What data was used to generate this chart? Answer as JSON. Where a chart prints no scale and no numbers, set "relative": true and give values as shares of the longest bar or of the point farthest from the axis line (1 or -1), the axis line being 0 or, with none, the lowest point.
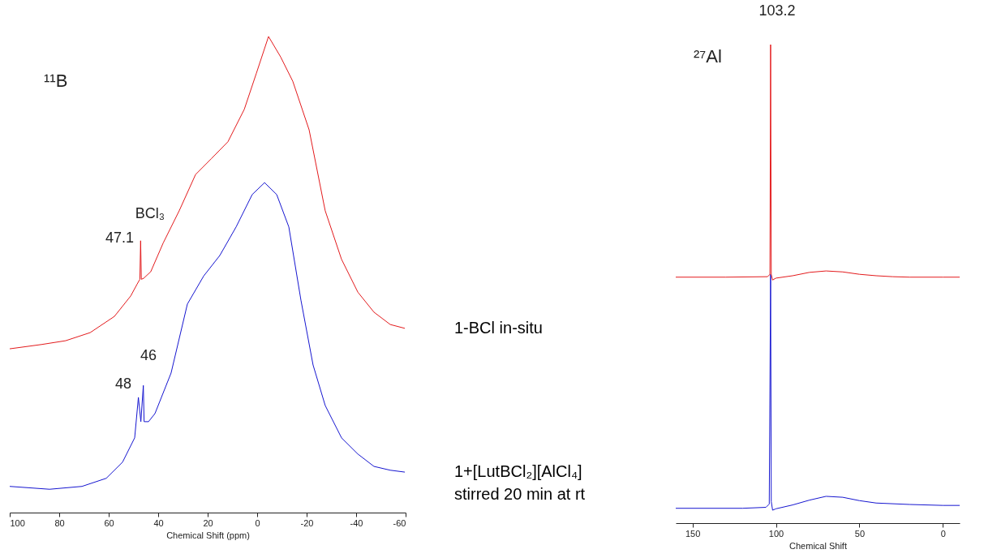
{
  "chart_data": [
    {
      "type": "line",
      "relative": true,
      "xlabel": "Chemical Shift (ppm)",
      "xlim": [
        100,
        -60
      ],
      "xticks": [
        100,
        80,
        60,
        40,
        20,
        0,
        -20,
        -40,
        -60
      ],
      "legend": false,
      "marker": "none",
      "line_style": "solid",
      "annotations": [
        "¹¹B",
        "BCl₃",
        "47.1",
        "46",
        "48"
      ],
      "series": [
        {
          "name": "1-BCl in-situ",
          "color": "#e31a1c",
          "x": [
            100,
            87.2,
            77.4,
            67.5,
            57.7,
            51.1,
            48.5,
            47.4,
            47.1,
            46.8,
            45.9,
            43.0,
            38.0,
            31.5,
            24.9,
            18.4,
            11.8,
            5.2,
            0.3,
            -4.6,
            -9.5,
            -14.4,
            -21.0,
            -27.5,
            -34.1,
            -40.7,
            -47.2,
            -53.8,
            -59.7
          ],
          "values": [
            0.344,
            0.353,
            0.361,
            0.378,
            0.412,
            0.455,
            0.48,
            0.49,
            0.571,
            0.49,
            0.492,
            0.506,
            0.566,
            0.634,
            0.71,
            0.744,
            0.779,
            0.847,
            0.923,
            1.0,
            0.957,
            0.906,
            0.804,
            0.634,
            0.532,
            0.463,
            0.421,
            0.395,
            0.387
          ]
        },
        {
          "name": "1+[LutBCl₂][AlCl₄] stirred 20 min at rt",
          "color": "#1515d0",
          "x": [
            100,
            83.9,
            70.8,
            61.0,
            54.4,
            49.5,
            48,
            47,
            46,
            45.7,
            43.9,
            41.3,
            34.8,
            28.2,
            21.6,
            15.1,
            8.5,
            2.0,
            -3.0,
            -7.9,
            -12.8,
            -17.7,
            -22.6,
            -27.5,
            -34.1,
            -40.7,
            -47.2,
            -53.8,
            -59.7
          ],
          "values": [
            0.055,
            0.049,
            0.055,
            0.072,
            0.106,
            0.157,
            0.242,
            0.191,
            0.267,
            0.191,
            0.191,
            0.208,
            0.293,
            0.438,
            0.497,
            0.54,
            0.6,
            0.668,
            0.693,
            0.668,
            0.6,
            0.446,
            0.31,
            0.225,
            0.157,
            0.123,
            0.097,
            0.089,
            0.085
          ]
        }
      ]
    },
    {
      "type": "line",
      "relative": true,
      "xlabel": "Chemical Shift",
      "xlim": [
        160,
        -10
      ],
      "xticks": [
        150,
        100,
        50,
        0
      ],
      "legend": false,
      "marker": "none",
      "line_style": "solid",
      "annotations": [
        "²⁷Al",
        "103.2"
      ],
      "series": [
        {
          "color": "#1515d0",
          "x": [
            160,
            120,
            106,
            104,
            103.2,
            102.8,
            102,
            100,
            90,
            80,
            70,
            60,
            50,
            40,
            20,
            0,
            -10
          ],
          "values": [
            0.031,
            0.031,
            0.033,
            0.04,
            0.52,
            0.045,
            0.027,
            0.03,
            0.038,
            0.048,
            0.056,
            0.054,
            0.047,
            0.042,
            0.039,
            0.037,
            0.037
          ]
        },
        {
          "color": "#e31a1c",
          "x": [
            160,
            130,
            105,
            103.6,
            103.2,
            102.8,
            102,
            100,
            90,
            80,
            70,
            60,
            50,
            40,
            30,
            20,
            0,
            -10
          ],
          "values": [
            0.514,
            0.514,
            0.515,
            0.52,
            1.0,
            0.52,
            0.508,
            0.512,
            0.517,
            0.524,
            0.527,
            0.525,
            0.52,
            0.517,
            0.515,
            0.514,
            0.514,
            0.514
          ]
        }
      ]
    }
  ]
}
